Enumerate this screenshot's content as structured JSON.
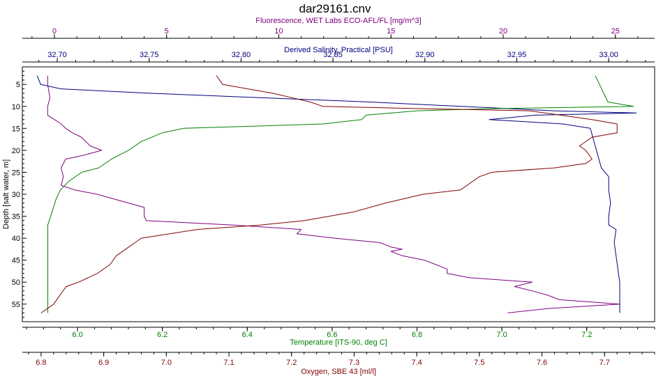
{
  "chart_data": {
    "type": "line",
    "title": "dar29161.cnv",
    "plot_style": {
      "background": "#ffffff",
      "grid": false,
      "legend": "none"
    },
    "y_axis": {
      "label": "Depth [salt water, m]",
      "inverted": true,
      "range": [
        1,
        59
      ],
      "ticks": [
        5,
        10,
        15,
        20,
        25,
        30,
        35,
        40,
        45,
        50,
        55
      ]
    },
    "x_axes": [
      {
        "id": "fluorescence",
        "label": "Fluorescence, WET Labs ECO-AFL/FL [mg/m^3]",
        "position": "top-outer",
        "color": "#800080",
        "range": [
          -1.43,
          26.75
        ],
        "ticks": [
          0,
          5,
          10,
          15,
          20,
          25
        ],
        "tick_labels": [
          "0",
          "5",
          "10",
          "15",
          "20",
          "25"
        ]
      },
      {
        "id": "salinity",
        "label": "Derived Salinity, Practical [PSU]",
        "position": "top-inner",
        "color": "#000080",
        "range": [
          32.681,
          33.025
        ],
        "ticks": [
          32.7,
          32.75,
          32.8,
          32.85,
          32.9,
          32.95,
          33.0
        ],
        "tick_labels": [
          "32.70",
          "32.75",
          "32.80",
          "32.85",
          "32.90",
          "32.95",
          "33.00"
        ]
      },
      {
        "id": "temperature",
        "label": "Temperature [ITS-90, deg C]",
        "position": "bottom-inner",
        "color": "#008000",
        "range": [
          5.87,
          7.36
        ],
        "ticks": [
          6.0,
          6.2,
          6.4,
          6.6,
          6.8,
          7.0,
          7.2
        ],
        "tick_labels": [
          "6.0",
          "6.2",
          "6.4",
          "6.6",
          "6.8",
          "7.0",
          "7.2"
        ]
      },
      {
        "id": "oxygen",
        "label": "Oxygen, SBE 43 [ml/l]",
        "position": "bottom-outer",
        "color": "#800000",
        "range": [
          6.77,
          7.78
        ],
        "ticks": [
          6.8,
          6.9,
          7.0,
          7.1,
          7.2,
          7.3,
          7.4,
          7.5,
          7.6,
          7.7
        ],
        "tick_labels": [
          "6.8",
          "6.9",
          "7.0",
          "7.1",
          "7.2",
          "7.3",
          "7.4",
          "7.5",
          "7.6",
          "7.7"
        ]
      }
    ],
    "series": [
      {
        "axis": "salinity",
        "color": "#000080",
        "points": [
          [
            32.689,
            3
          ],
          [
            32.691,
            5
          ],
          [
            32.702,
            6
          ],
          [
            32.75,
            7
          ],
          [
            32.81,
            8
          ],
          [
            32.87,
            9
          ],
          [
            32.92,
            10
          ],
          [
            32.97,
            11
          ],
          [
            33.015,
            11.5
          ],
          [
            32.96,
            12
          ],
          [
            32.935,
            13
          ],
          [
            32.975,
            14
          ],
          [
            32.99,
            15
          ],
          [
            32.992,
            18
          ],
          [
            32.994,
            21
          ],
          [
            32.996,
            24
          ],
          [
            33.0,
            26
          ],
          [
            33.0,
            29
          ],
          [
            33.001,
            32
          ],
          [
            33.0,
            35
          ],
          [
            33.0,
            37
          ],
          [
            33.004,
            38
          ],
          [
            33.003,
            41
          ],
          [
            33.004,
            44
          ],
          [
            33.005,
            47
          ],
          [
            33.006,
            50
          ],
          [
            33.006,
            53
          ],
          [
            33.006,
            57
          ]
        ]
      },
      {
        "axis": "fluorescence",
        "color": "#800080",
        "points": [
          [
            -0.3,
            3
          ],
          [
            -0.3,
            5
          ],
          [
            -0.2,
            8
          ],
          [
            -0.3,
            10
          ],
          [
            -0.3,
            12
          ],
          [
            0.3,
            14
          ],
          [
            0.5,
            15
          ],
          [
            0.8,
            16
          ],
          [
            1.2,
            17
          ],
          [
            1.6,
            19
          ],
          [
            2.1,
            20
          ],
          [
            1.4,
            21
          ],
          [
            0.5,
            22
          ],
          [
            0.3,
            24
          ],
          [
            0.4,
            26
          ],
          [
            0.3,
            28
          ],
          [
            0.9,
            29
          ],
          [
            1.9,
            30
          ],
          [
            3.3,
            32
          ],
          [
            4.0,
            33
          ],
          [
            4.0,
            35
          ],
          [
            4.1,
            36
          ],
          [
            8.0,
            37
          ],
          [
            11.0,
            38
          ],
          [
            10.8,
            39
          ],
          [
            12.5,
            40
          ],
          [
            14.5,
            41
          ],
          [
            15.0,
            42
          ],
          [
            15.5,
            42.5
          ],
          [
            15.0,
            43
          ],
          [
            15.5,
            44
          ],
          [
            16.5,
            45
          ],
          [
            17.0,
            46
          ],
          [
            17.5,
            47
          ],
          [
            17.5,
            48
          ],
          [
            18.5,
            49
          ],
          [
            21.3,
            50
          ],
          [
            20.5,
            51
          ],
          [
            21.3,
            52
          ],
          [
            22.0,
            53
          ],
          [
            22.5,
            54
          ],
          [
            25.2,
            55
          ],
          [
            22.0,
            56
          ],
          [
            20.2,
            57
          ]
        ]
      },
      {
        "axis": "temperature",
        "color": "#008000",
        "points": [
          [
            7.22,
            3
          ],
          [
            7.23,
            5
          ],
          [
            7.24,
            7
          ],
          [
            7.25,
            9
          ],
          [
            7.31,
            10
          ],
          [
            6.99,
            10.5
          ],
          [
            6.8,
            11
          ],
          [
            6.68,
            12
          ],
          [
            6.67,
            13
          ],
          [
            6.58,
            14
          ],
          [
            6.25,
            15
          ],
          [
            6.2,
            16
          ],
          [
            6.15,
            18
          ],
          [
            6.12,
            20
          ],
          [
            6.08,
            22
          ],
          [
            6.05,
            24
          ],
          [
            6.01,
            25
          ],
          [
            5.98,
            27
          ],
          [
            5.96,
            29
          ],
          [
            5.95,
            31
          ],
          [
            5.94,
            34
          ],
          [
            5.93,
            37
          ],
          [
            5.93,
            40
          ],
          [
            5.93,
            43
          ],
          [
            5.93,
            47
          ],
          [
            5.93,
            50
          ],
          [
            5.93,
            53
          ],
          [
            5.93,
            57
          ]
        ]
      },
      {
        "axis": "oxygen",
        "color": "#800000",
        "points": [
          [
            7.08,
            3
          ],
          [
            7.09,
            5
          ],
          [
            7.13,
            6
          ],
          [
            7.17,
            7
          ],
          [
            7.2,
            8
          ],
          [
            7.23,
            9
          ],
          [
            7.25,
            10
          ],
          [
            7.4,
            10.5
          ],
          [
            7.58,
            11
          ],
          [
            7.63,
            12
          ],
          [
            7.68,
            13
          ],
          [
            7.72,
            14
          ],
          [
            7.72,
            15
          ],
          [
            7.72,
            16
          ],
          [
            7.68,
            17
          ],
          [
            7.66,
            19
          ],
          [
            7.67,
            20
          ],
          [
            7.68,
            22
          ],
          [
            7.67,
            23
          ],
          [
            7.62,
            24
          ],
          [
            7.52,
            25
          ],
          [
            7.5,
            26
          ],
          [
            7.48,
            28
          ],
          [
            7.47,
            29
          ],
          [
            7.41,
            30
          ],
          [
            7.35,
            32
          ],
          [
            7.3,
            34
          ],
          [
            7.22,
            36
          ],
          [
            7.15,
            37
          ],
          [
            7.05,
            38
          ],
          [
            6.96,
            40
          ],
          [
            6.95,
            41
          ],
          [
            6.94,
            42
          ],
          [
            6.92,
            44
          ],
          [
            6.91,
            46
          ],
          [
            6.89,
            48
          ],
          [
            6.86,
            50
          ],
          [
            6.84,
            51
          ],
          [
            6.83,
            53
          ],
          [
            6.82,
            55
          ],
          [
            6.8,
            57
          ]
        ]
      }
    ]
  }
}
